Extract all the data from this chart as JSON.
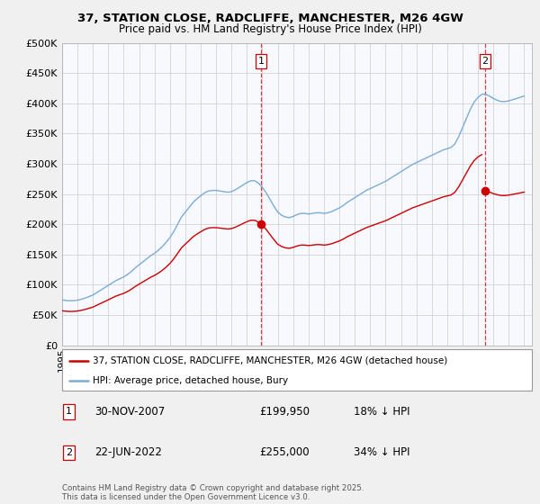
{
  "title": "37, STATION CLOSE, RADCLIFFE, MANCHESTER, M26 4GW",
  "subtitle": "Price paid vs. HM Land Registry's House Price Index (HPI)",
  "ylim": [
    0,
    500000
  ],
  "xlim_start": 1995.0,
  "xlim_end": 2025.5,
  "hpi_color": "#7aadd4",
  "price_color": "#cc0000",
  "vline_color": "#cc0000",
  "bg_color": "#f0f0f0",
  "plot_bg_color": "#f8f8ff",
  "grid_color": "#cccccc",
  "legend_label_red": "37, STATION CLOSE, RADCLIFFE, MANCHESTER, M26 4GW (detached house)",
  "legend_label_blue": "HPI: Average price, detached house, Bury",
  "annotation1_date": "30-NOV-2007",
  "annotation1_price": "£199,950",
  "annotation1_hpi": "18% ↓ HPI",
  "annotation2_date": "22-JUN-2022",
  "annotation2_price": "£255,000",
  "annotation2_hpi": "34% ↓ HPI",
  "footer": "Contains HM Land Registry data © Crown copyright and database right 2025.\nThis data is licensed under the Open Government Licence v3.0.",
  "vline1_x": 2007.92,
  "vline2_x": 2022.47,
  "hpi_years": [
    1995.0,
    1995.25,
    1995.5,
    1995.75,
    1996.0,
    1996.25,
    1996.5,
    1996.75,
    1997.0,
    1997.25,
    1997.5,
    1997.75,
    1998.0,
    1998.25,
    1998.5,
    1998.75,
    1999.0,
    1999.25,
    1999.5,
    1999.75,
    2000.0,
    2000.25,
    2000.5,
    2000.75,
    2001.0,
    2001.25,
    2001.5,
    2001.75,
    2002.0,
    2002.25,
    2002.5,
    2002.75,
    2003.0,
    2003.25,
    2003.5,
    2003.75,
    2004.0,
    2004.25,
    2004.5,
    2004.75,
    2005.0,
    2005.25,
    2005.5,
    2005.75,
    2006.0,
    2006.25,
    2006.5,
    2006.75,
    2007.0,
    2007.25,
    2007.5,
    2007.75,
    2008.0,
    2008.25,
    2008.5,
    2008.75,
    2009.0,
    2009.25,
    2009.5,
    2009.75,
    2010.0,
    2010.25,
    2010.5,
    2010.75,
    2011.0,
    2011.25,
    2011.5,
    2011.75,
    2012.0,
    2012.25,
    2012.5,
    2012.75,
    2013.0,
    2013.25,
    2013.5,
    2013.75,
    2014.0,
    2014.25,
    2014.5,
    2014.75,
    2015.0,
    2015.25,
    2015.5,
    2015.75,
    2016.0,
    2016.25,
    2016.5,
    2016.75,
    2017.0,
    2017.25,
    2017.5,
    2017.75,
    2018.0,
    2018.25,
    2018.5,
    2018.75,
    2019.0,
    2019.25,
    2019.5,
    2019.75,
    2020.0,
    2020.25,
    2020.5,
    2020.75,
    2021.0,
    2021.25,
    2021.5,
    2021.75,
    2022.0,
    2022.25,
    2022.5,
    2022.75,
    2023.0,
    2023.25,
    2023.5,
    2023.75,
    2024.0,
    2024.25,
    2024.5,
    2024.75,
    2025.0
  ],
  "hpi_values": [
    75000,
    74000,
    73500,
    73800,
    74500,
    76000,
    78000,
    80500,
    83000,
    87000,
    91000,
    95000,
    99000,
    103000,
    107000,
    110000,
    113000,
    117000,
    122000,
    128000,
    133000,
    138000,
    143000,
    148000,
    152000,
    157000,
    163000,
    170000,
    178000,
    188000,
    200000,
    212000,
    220000,
    228000,
    236000,
    242000,
    247000,
    252000,
    255000,
    256000,
    256000,
    255000,
    254000,
    253000,
    254000,
    257000,
    261000,
    265000,
    269000,
    272000,
    272000,
    268000,
    261000,
    252000,
    241000,
    230000,
    220000,
    215000,
    212000,
    211000,
    213000,
    216000,
    218000,
    218000,
    217000,
    218000,
    219000,
    219000,
    218000,
    219000,
    221000,
    224000,
    227000,
    231000,
    236000,
    240000,
    244000,
    248000,
    252000,
    256000,
    259000,
    262000,
    265000,
    268000,
    271000,
    275000,
    279000,
    283000,
    287000,
    291000,
    295000,
    299000,
    302000,
    305000,
    308000,
    311000,
    314000,
    317000,
    320000,
    323000,
    325000,
    327000,
    333000,
    345000,
    360000,
    375000,
    390000,
    402000,
    410000,
    415000,
    415000,
    412000,
    408000,
    405000,
    403000,
    403000,
    404000,
    406000,
    408000,
    410000,
    412000
  ],
  "price_values": [
    199950,
    255000
  ]
}
